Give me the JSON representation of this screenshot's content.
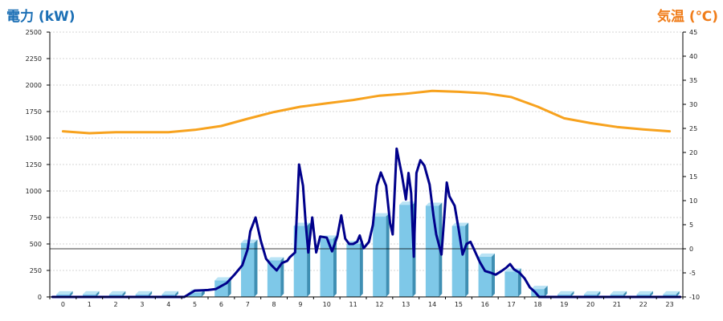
{
  "chart_data": {
    "type": "bar",
    "title_left": "電力 (kW)",
    "title_right": "気温 (℃)",
    "categories": [
      "0",
      "1",
      "2",
      "3",
      "4",
      "5",
      "6",
      "7",
      "8",
      "9",
      "10",
      "11",
      "12",
      "13",
      "14",
      "15",
      "16",
      "17",
      "18",
      "19",
      "20",
      "21",
      "22",
      "23"
    ],
    "y_left": {
      "min": 0,
      "max": 2500,
      "ticks": [
        0,
        250,
        500,
        750,
        1000,
        1250,
        1500,
        1750,
        2000,
        2250,
        2500
      ]
    },
    "y_right": {
      "min": -10,
      "max": 45,
      "ticks": [
        -10,
        -5,
        0,
        5,
        10,
        15,
        20,
        25,
        30,
        35,
        40,
        45
      ]
    },
    "series": [
      {
        "kind": "bar",
        "axis": "left",
        "color": "#7ec8e8",
        "values": [
          25,
          25,
          25,
          25,
          25,
          40,
          155,
          510,
          345,
          670,
          550,
          500,
          760,
          870,
          860,
          670,
          380,
          240,
          75,
          25,
          25,
          25,
          25,
          25
        ]
      },
      {
        "kind": "line",
        "axis": "left",
        "color": "#00008b",
        "points": [
          [
            -0.4,
            0
          ],
          [
            4.6,
            0
          ],
          [
            5.0,
            60
          ],
          [
            5.5,
            65
          ],
          [
            5.8,
            75
          ],
          [
            6.2,
            130
          ],
          [
            6.5,
            210
          ],
          [
            6.8,
            300
          ],
          [
            7.0,
            450
          ],
          [
            7.1,
            620
          ],
          [
            7.3,
            750
          ],
          [
            7.5,
            530
          ],
          [
            7.7,
            360
          ],
          [
            7.9,
            300
          ],
          [
            8.1,
            250
          ],
          [
            8.3,
            320
          ],
          [
            8.5,
            340
          ],
          [
            8.6,
            375
          ],
          [
            8.8,
            420
          ],
          [
            8.95,
            1250
          ],
          [
            9.1,
            1050
          ],
          [
            9.2,
            700
          ],
          [
            9.3,
            420
          ],
          [
            9.45,
            750
          ],
          [
            9.6,
            420
          ],
          [
            9.75,
            570
          ],
          [
            10.0,
            560
          ],
          [
            10.2,
            430
          ],
          [
            10.4,
            570
          ],
          [
            10.55,
            770
          ],
          [
            10.7,
            550
          ],
          [
            10.85,
            500
          ],
          [
            11.0,
            500
          ],
          [
            11.15,
            520
          ],
          [
            11.25,
            580
          ],
          [
            11.4,
            460
          ],
          [
            11.6,
            520
          ],
          [
            11.75,
            680
          ],
          [
            11.9,
            1050
          ],
          [
            12.05,
            1175
          ],
          [
            12.25,
            1050
          ],
          [
            12.4,
            700
          ],
          [
            12.5,
            590
          ],
          [
            12.65,
            1400
          ],
          [
            12.85,
            1150
          ],
          [
            13.0,
            920
          ],
          [
            13.1,
            1170
          ],
          [
            13.2,
            980
          ],
          [
            13.3,
            380
          ],
          [
            13.4,
            1170
          ],
          [
            13.55,
            1290
          ],
          [
            13.7,
            1240
          ],
          [
            13.9,
            1060
          ],
          [
            14.05,
            760
          ],
          [
            14.15,
            590
          ],
          [
            14.35,
            400
          ],
          [
            14.55,
            1080
          ],
          [
            14.65,
            950
          ],
          [
            14.85,
            860
          ],
          [
            15.0,
            640
          ],
          [
            15.15,
            400
          ],
          [
            15.3,
            500
          ],
          [
            15.45,
            520
          ],
          [
            15.6,
            440
          ],
          [
            15.8,
            330
          ],
          [
            16.0,
            245
          ],
          [
            16.2,
            230
          ],
          [
            16.4,
            210
          ],
          [
            16.6,
            240
          ],
          [
            16.8,
            275
          ],
          [
            16.95,
            310
          ],
          [
            17.1,
            260
          ],
          [
            17.3,
            230
          ],
          [
            17.5,
            175
          ],
          [
            17.7,
            90
          ],
          [
            17.9,
            45
          ],
          [
            18.05,
            0
          ],
          [
            23.4,
            0
          ]
        ]
      },
      {
        "kind": "line",
        "axis": "right",
        "color": "#f7a21e",
        "values": [
          24.4,
          24.0,
          24.2,
          24.2,
          24.2,
          24.7,
          25.5,
          27.0,
          28.4,
          29.5,
          30.2,
          30.9,
          31.8,
          32.2,
          32.8,
          32.6,
          32.3,
          31.5,
          29.5,
          27.1,
          26.1,
          25.3,
          24.8,
          24.4
        ]
      }
    ]
  }
}
